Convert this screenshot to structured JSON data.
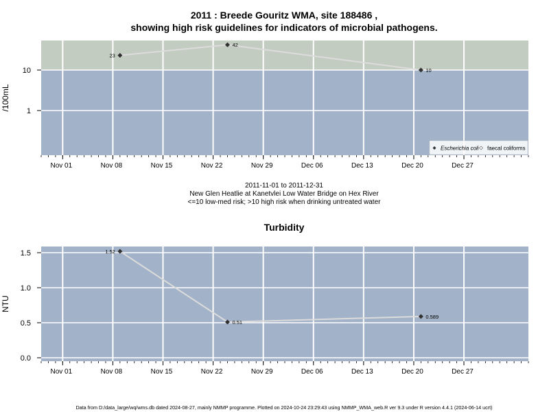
{
  "title_line1": "2011 : Breede Gouritz WMA, site 188486 ,",
  "title_line2": "showing high risk guidelines for indicators of microbial pathogens.",
  "footer": "Data from D:/data_large/wq/wms.db dated 2024-08-27, mainly NMMP programme. Plotted on 2024-10-24 23:29:43 using NMMP_WMA_web.R ver 9.3 under R version 4.4.1 (2024-06-14 ucrt)",
  "colors": {
    "panel_bg": "#a2b2c8",
    "high_risk_band": "#c3ccc0",
    "grid": "#ffffff",
    "line": "#dcdcdc",
    "point": "#303030"
  },
  "chart_data": [
    {
      "type": "line",
      "ylabel": "/100mL",
      "y_scale": "log",
      "y_ticks": [
        "1",
        "10"
      ],
      "x_ticks": [
        "Nov 01",
        "Nov 08",
        "Nov 15",
        "Nov 22",
        "Nov 29",
        "Dec 06",
        "Dec 13",
        "Dec 20",
        "Dec 27"
      ],
      "xlim": [
        "2011-10-29",
        "2012-01-05"
      ],
      "threshold": 10,
      "info_lines": [
        "2011-11-01 to 2011-12-31",
        "New Glen Heatlie at Kanetvlei Low Water Bridge on Hex River",
        "<=10 low-med risk; >10 high risk when drinking untreated water"
      ],
      "legend": {
        "position": "bottom-right",
        "entries": [
          "Escherichia coli",
          "faecal coliforms"
        ]
      },
      "series": [
        {
          "name": "Escherichia coli",
          "points": [
            {
              "date": "2011-11-09",
              "value": 23,
              "label": "23"
            },
            {
              "date": "2011-11-24",
              "value": 42,
              "label": "42"
            },
            {
              "date": "2011-12-21",
              "value": 10,
              "label": "10"
            }
          ]
        }
      ]
    },
    {
      "type": "line",
      "title": "Turbidity",
      "ylabel": "NTU",
      "y_scale": "linear",
      "y_ticks": [
        "0.0",
        "0.5",
        "1.0",
        "1.5"
      ],
      "x_ticks": [
        "Nov 01",
        "Nov 08",
        "Nov 15",
        "Nov 22",
        "Nov 29",
        "Dec 06",
        "Dec 13",
        "Dec 20",
        "Dec 27"
      ],
      "xlim": [
        "2011-10-29",
        "2012-01-05"
      ],
      "series": [
        {
          "points": [
            {
              "date": "2011-11-09",
              "value": 1.52,
              "label": "1.52"
            },
            {
              "date": "2011-11-24",
              "value": 0.51,
              "label": "0.51"
            },
            {
              "date": "2011-12-21",
              "value": 0.589,
              "label": "0.589"
            }
          ]
        }
      ]
    }
  ]
}
